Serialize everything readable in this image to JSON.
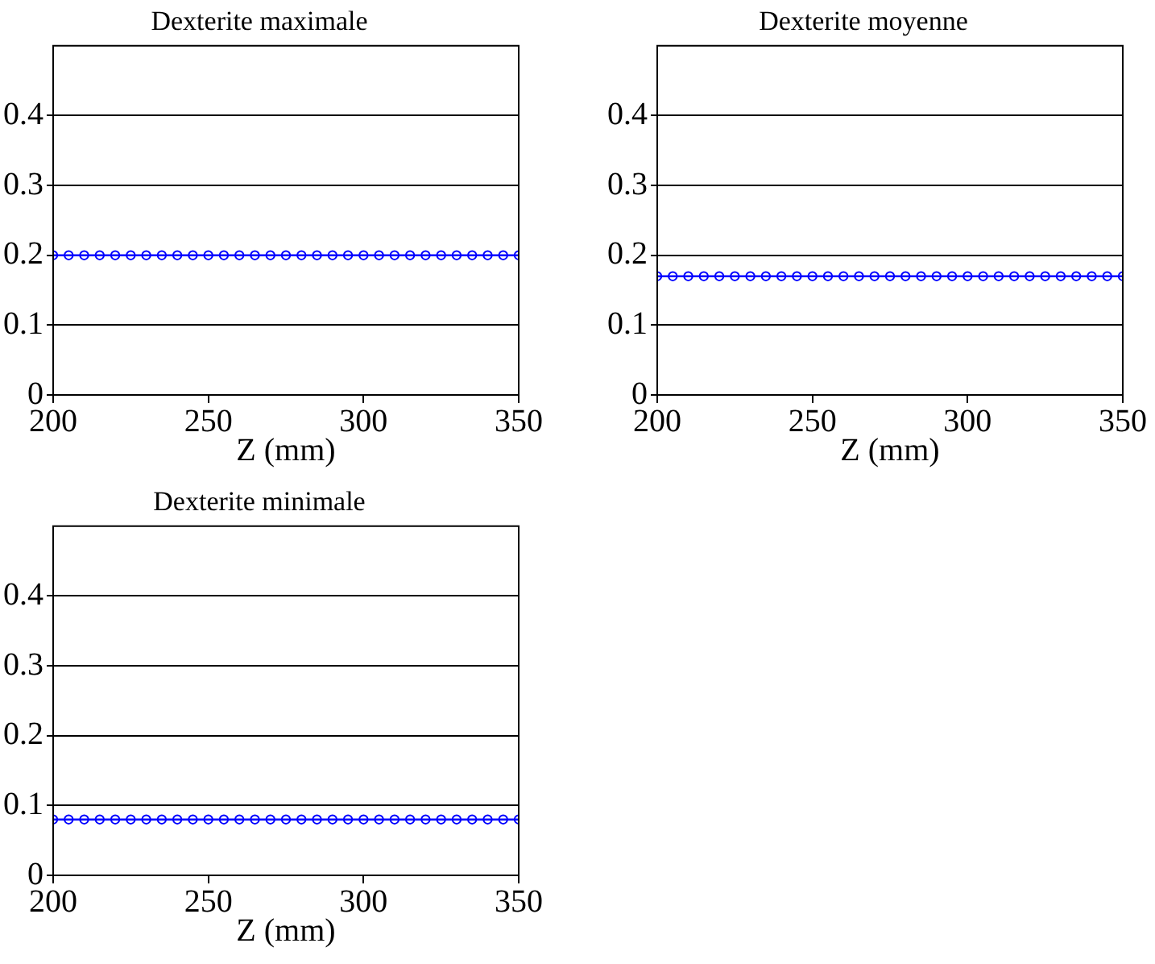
{
  "chart_data": [
    {
      "type": "line",
      "title": "Dexterite maximale",
      "xlabel": "Z (mm)",
      "x": [
        200,
        205,
        210,
        215,
        220,
        225,
        230,
        235,
        240,
        245,
        250,
        255,
        260,
        265,
        270,
        275,
        280,
        285,
        290,
        295,
        300,
        305,
        310,
        315,
        320,
        325,
        330,
        335,
        340,
        345,
        350
      ],
      "series": [
        {
          "color": "#0000ff",
          "values": [
            0.2,
            0.2,
            0.2,
            0.2,
            0.2,
            0.2,
            0.2,
            0.2,
            0.2,
            0.2,
            0.2,
            0.2,
            0.2,
            0.2,
            0.2,
            0.2,
            0.2,
            0.2,
            0.2,
            0.2,
            0.2,
            0.2,
            0.2,
            0.2,
            0.2,
            0.2,
            0.2,
            0.2,
            0.2,
            0.2,
            0.2
          ]
        }
      ],
      "xlim": [
        200,
        350
      ],
      "xticks": [
        200,
        250,
        300,
        350
      ],
      "ylim": [
        0,
        0.5
      ],
      "yticks": [
        0,
        0.1,
        0.2,
        0.3,
        0.4
      ],
      "grid": "y",
      "marker": "circle",
      "line_style": "solid",
      "legend": false
    },
    {
      "type": "line",
      "title": "Dexterite moyenne",
      "xlabel": "Z (mm)",
      "x": [
        200,
        205,
        210,
        215,
        220,
        225,
        230,
        235,
        240,
        245,
        250,
        255,
        260,
        265,
        270,
        275,
        280,
        285,
        290,
        295,
        300,
        305,
        310,
        315,
        320,
        325,
        330,
        335,
        340,
        345,
        350
      ],
      "series": [
        {
          "color": "#0000ff",
          "values": [
            0.17,
            0.17,
            0.17,
            0.17,
            0.17,
            0.17,
            0.17,
            0.17,
            0.17,
            0.17,
            0.17,
            0.17,
            0.17,
            0.17,
            0.17,
            0.17,
            0.17,
            0.17,
            0.17,
            0.17,
            0.17,
            0.17,
            0.17,
            0.17,
            0.17,
            0.17,
            0.17,
            0.17,
            0.17,
            0.17,
            0.17
          ]
        }
      ],
      "xlim": [
        200,
        350
      ],
      "xticks": [
        200,
        250,
        300,
        350
      ],
      "ylim": [
        0,
        0.5
      ],
      "yticks": [
        0,
        0.1,
        0.2,
        0.3,
        0.4
      ],
      "grid": "y",
      "marker": "circle",
      "line_style": "solid",
      "legend": false
    },
    {
      "type": "line",
      "title": "Dexterite minimale",
      "xlabel": "Z (mm)",
      "x": [
        200,
        205,
        210,
        215,
        220,
        225,
        230,
        235,
        240,
        245,
        250,
        255,
        260,
        265,
        270,
        275,
        280,
        285,
        290,
        295,
        300,
        305,
        310,
        315,
        320,
        325,
        330,
        335,
        340,
        345,
        350
      ],
      "series": [
        {
          "color": "#0000ff",
          "values": [
            0.08,
            0.08,
            0.08,
            0.08,
            0.08,
            0.08,
            0.08,
            0.08,
            0.08,
            0.08,
            0.08,
            0.08,
            0.08,
            0.08,
            0.08,
            0.08,
            0.08,
            0.08,
            0.08,
            0.08,
            0.08,
            0.08,
            0.08,
            0.08,
            0.08,
            0.08,
            0.08,
            0.08,
            0.08,
            0.08,
            0.08
          ]
        }
      ],
      "xlim": [
        200,
        350
      ],
      "xticks": [
        200,
        250,
        300,
        350
      ],
      "ylim": [
        0,
        0.5
      ],
      "yticks": [
        0,
        0.1,
        0.2,
        0.3,
        0.4
      ],
      "grid": "y",
      "marker": "circle",
      "line_style": "solid",
      "legend": false
    }
  ]
}
